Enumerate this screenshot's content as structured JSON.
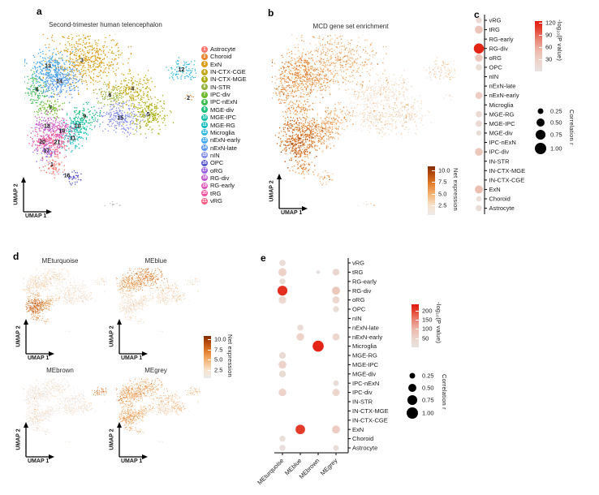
{
  "figure": {
    "panel_a_label": "a",
    "panel_b_label": "b",
    "panel_c_label": "c",
    "panel_d_label": "d",
    "panel_e_label": "e",
    "panel_a_title": "Second-trimester human telencephalon",
    "panel_b_title": "MCD gene set enrichment",
    "axis_x": "UMAP 1",
    "axis_y": "UMAP 2",
    "net_expression_label": "Net expression",
    "pvalue_label": "-log₁₀(P value)",
    "correlation_label": "Correlation r"
  },
  "chart_data": [
    {
      "id": "umap_clusters",
      "type": "scatter",
      "panel": "a",
      "title": "Second-trimester human telencephalon",
      "xlabel": "UMAP 1",
      "ylabel": "UMAP 2",
      "clusters": [
        {
          "num": 1,
          "name": "Astrocyte",
          "color": "#F8766D",
          "cx": 0.158,
          "cy": 0.715,
          "sx": 0.03,
          "sy": 0.03,
          "n": 70
        },
        {
          "num": 2,
          "name": "Choroid",
          "color": "#E8842E",
          "cx": 0.94,
          "cy": 0.35,
          "sx": 0.012,
          "sy": 0.01,
          "n": 6
        },
        {
          "num": 3,
          "name": "ExN",
          "color": "#D99C17",
          "cx": 0.36,
          "cy": 0.15,
          "sx": 0.105,
          "sy": 0.075,
          "n": 520,
          "lx": 0.33,
          "ly": 0.145
        },
        {
          "num": 4,
          "name": "IN-CTX-CGE",
          "color": "#C3A919",
          "cx": 0.62,
          "cy": 0.3,
          "sx": 0.055,
          "sy": 0.042,
          "n": 190
        },
        {
          "num": 5,
          "name": "IN-CTX-MGE",
          "color": "#ABAF13",
          "cx": 0.71,
          "cy": 0.44,
          "sx": 0.06,
          "sy": 0.045,
          "n": 220
        },
        {
          "num": 6,
          "name": "IN-STR",
          "color": "#93B43C",
          "cx": 0.49,
          "cy": 0.335,
          "sx": 0.038,
          "sy": 0.03,
          "n": 80
        },
        {
          "num": 7,
          "name": "IPC-div",
          "color": "#6FBA2C",
          "cx": 0.15,
          "cy": 0.405,
          "sx": 0.04,
          "sy": 0.026,
          "n": 80
        },
        {
          "num": 8,
          "name": "IPC-nExN",
          "color": "#3FBD53",
          "cx": 0.072,
          "cy": 0.305,
          "sx": 0.035,
          "sy": 0.045,
          "n": 110
        },
        {
          "num": 9,
          "name": "MGE-div",
          "color": "#1FBF7E",
          "cx": 0.345,
          "cy": 0.45,
          "sx": 0.042,
          "sy": 0.032,
          "n": 100
        },
        {
          "num": 10,
          "name": "MGE-IPC",
          "color": "#0ABEA5",
          "cx": 0.305,
          "cy": 0.505,
          "sx": 0.038,
          "sy": 0.03,
          "n": 90
        },
        {
          "num": 11,
          "name": "MGE-RG",
          "color": "#16BCC3",
          "cx": 0.278,
          "cy": 0.57,
          "sx": 0.032,
          "sy": 0.038,
          "n": 80
        },
        {
          "num": 12,
          "name": "Microglia",
          "color": "#33B8DD",
          "cx": 0.915,
          "cy": 0.205,
          "sx": 0.042,
          "sy": 0.032,
          "n": 90,
          "lx": 0.9,
          "ly": 0.195
        },
        {
          "num": 13,
          "name": "nExN-early",
          "color": "#3FA8EE",
          "cx": 0.15,
          "cy": 0.205,
          "sx": 0.062,
          "sy": 0.055,
          "n": 260,
          "lx": 0.135,
          "ly": 0.175
        },
        {
          "num": 14,
          "name": "nExN-late",
          "color": "#5A97F2",
          "cx": 0.2,
          "cy": 0.26,
          "sx": 0.055,
          "sy": 0.048,
          "n": 220
        },
        {
          "num": 15,
          "name": "nIN",
          "color": "#8690EF",
          "cx": 0.55,
          "cy": 0.46,
          "sx": 0.062,
          "sy": 0.045,
          "n": 230
        },
        {
          "num": 16,
          "name": "OPC",
          "color": "#5A58CE",
          "cx": 0.285,
          "cy": 0.79,
          "sx": 0.026,
          "sy": 0.018,
          "n": 40,
          "lx": 0.245,
          "ly": 0.775
        },
        {
          "num": 17,
          "name": "oRG",
          "color": "#9B64DD",
          "cx": 0.127,
          "cy": 0.64,
          "sx": 0.032,
          "sy": 0.028,
          "n": 70
        },
        {
          "num": 18,
          "name": "RG-div",
          "color": "#C257CE",
          "cx": 0.13,
          "cy": 0.505,
          "sx": 0.042,
          "sy": 0.038,
          "n": 120
        },
        {
          "num": 19,
          "name": "RG-early",
          "color": "#DE58BC",
          "cx": 0.215,
          "cy": 0.53,
          "sx": 0.04,
          "sy": 0.036,
          "n": 110
        },
        {
          "num": 20,
          "name": "tRG",
          "color": "#EE549E",
          "cx": 0.103,
          "cy": 0.59,
          "sx": 0.035,
          "sy": 0.032,
          "n": 90
        },
        {
          "num": 21,
          "name": "vRG",
          "color": "#F65C86",
          "cx": 0.188,
          "cy": 0.593,
          "sx": 0.035,
          "sy": 0.032,
          "n": 90
        },
        {
          "num": 0,
          "name": "",
          "color": "#C4C0BD",
          "cx": 0.52,
          "cy": 0.925,
          "sx": 0.03,
          "sy": 0.012,
          "n": 10
        }
      ]
    },
    {
      "id": "umap_mcd",
      "type": "scatter",
      "panel": "b",
      "title": "MCD gene set enrichment",
      "xlabel": "UMAP 1",
      "ylabel": "UMAP 2",
      "colorbar": {
        "label": "Net expression",
        "ticks": [
          2.5,
          5.0,
          7.5,
          10.0
        ],
        "min": 0.5,
        "max": 10.8
      },
      "intensity_by_cluster": {
        "0": 1.5,
        "1": 5.5,
        "2": 2.5,
        "3": 4.0,
        "4": 1.8,
        "5": 1.8,
        "6": 2.2,
        "7": 5.0,
        "8": 5.5,
        "9": 4.5,
        "10": 4.5,
        "11": 5.0,
        "12": 2.5,
        "13": 5.5,
        "14": 5.0,
        "15": 1.8,
        "16": 4.0,
        "17": 7.0,
        "18": 7.0,
        "19": 6.5,
        "20": 7.5,
        "21": 7.0
      }
    },
    {
      "id": "dotplot_mcd",
      "type": "dot",
      "panel": "c",
      "rows": [
        "vRG",
        "tRG",
        "RG-early",
        "RG-div",
        "oRG",
        "OPC",
        "nIN",
        "nExN-late",
        "nExN-early",
        "Microglia",
        "MGE-RG",
        "MGE-IPC",
        "MGE-div",
        "IPC-nExN",
        "IPC-div",
        "IN-STR",
        "IN-CTX-MGE",
        "IN-CTX-CGE",
        "ExN",
        "Choroid",
        "Astrocyte"
      ],
      "color_legend": {
        "label": "-log₁₀(P value)",
        "ticks": [
          30,
          60,
          90,
          120
        ],
        "min": 0,
        "max": 125
      },
      "size_legend": {
        "label": "Correlation r",
        "ticks": [
          0.25,
          0.5,
          0.75,
          1.0
        ]
      },
      "dots": [
        {
          "row": "vRG",
          "correlation": 0.28,
          "neglogp": 15
        },
        {
          "row": "tRG",
          "correlation": 0.5,
          "neglogp": 40
        },
        {
          "row": "RG-div",
          "correlation": 0.8,
          "neglogp": 120
        },
        {
          "row": "oRG",
          "correlation": 0.45,
          "neglogp": 38
        },
        {
          "row": "OPC",
          "correlation": 0.3,
          "neglogp": 12
        },
        {
          "row": "nExN-early",
          "correlation": 0.38,
          "neglogp": 32
        },
        {
          "row": "MGE-RG",
          "correlation": 0.3,
          "neglogp": 15
        },
        {
          "row": "MGE-IPC",
          "correlation": 0.32,
          "neglogp": 16
        },
        {
          "row": "MGE-div",
          "correlation": 0.22,
          "neglogp": 12
        },
        {
          "row": "IPC-div",
          "correlation": 0.45,
          "neglogp": 38
        },
        {
          "row": "ExN",
          "correlation": 0.5,
          "neglogp": 48
        },
        {
          "row": "Choroid",
          "correlation": 0.22,
          "neglogp": 10
        },
        {
          "row": "Astrocyte",
          "correlation": 0.3,
          "neglogp": 12
        }
      ]
    },
    {
      "id": "umap_modules",
      "type": "scatter-multi",
      "panel": "d",
      "xlabel": "UMAP 1",
      "ylabel": "UMAP 2",
      "colorbar": {
        "label": "Net expression",
        "ticks": [
          2.5,
          5.0,
          7.5,
          10.0
        ],
        "min": 0.5,
        "max": 10.8
      },
      "modules": [
        {
          "title": "MEturquoise",
          "intensity_by_cluster": {
            "0": 1.2,
            "1": 6.0,
            "2": 1.5,
            "3": 1.8,
            "4": 1.2,
            "5": 1.2,
            "6": 1.5,
            "7": 4.0,
            "8": 2.0,
            "9": 3.5,
            "10": 4.0,
            "11": 5.0,
            "12": 1.2,
            "13": 1.8,
            "14": 1.8,
            "15": 1.2,
            "16": 3.0,
            "17": 7.0,
            "18": 7.5,
            "19": 6.5,
            "20": 7.0,
            "21": 7.0
          }
        },
        {
          "title": "MEblue",
          "intensity_by_cluster": {
            "0": 1.2,
            "1": 1.5,
            "2": 1.5,
            "3": 6.5,
            "4": 2.0,
            "5": 1.5,
            "6": 2.0,
            "7": 2.5,
            "8": 3.0,
            "9": 1.8,
            "10": 1.8,
            "11": 1.5,
            "12": 1.5,
            "13": 5.0,
            "14": 4.5,
            "15": 1.8,
            "16": 1.5,
            "17": 1.5,
            "18": 1.5,
            "19": 1.5,
            "20": 1.5,
            "21": 1.5
          }
        },
        {
          "title": "MEbrown",
          "intensity_by_cluster": {
            "0": 0.9,
            "1": 0.9,
            "2": 0.9,
            "3": 0.9,
            "4": 0.9,
            "5": 0.9,
            "6": 0.9,
            "7": 0.9,
            "8": 0.9,
            "9": 0.9,
            "10": 0.9,
            "11": 0.9,
            "12": 6.5,
            "13": 0.9,
            "14": 0.9,
            "15": 0.9,
            "16": 0.9,
            "17": 0.9,
            "18": 0.9,
            "19": 0.9,
            "20": 0.9,
            "21": 0.9
          }
        },
        {
          "title": "MEgrey",
          "intensity_by_cluster": {
            "0": 2.0,
            "1": 4.5,
            "2": 2.5,
            "3": 4.5,
            "4": 3.2,
            "5": 3.2,
            "6": 3.0,
            "7": 4.5,
            "8": 5.0,
            "9": 3.8,
            "10": 3.8,
            "11": 4.0,
            "12": 3.8,
            "13": 5.0,
            "14": 4.5,
            "15": 2.5,
            "16": 4.0,
            "17": 4.5,
            "18": 4.5,
            "19": 4.0,
            "20": 5.0,
            "21": 4.5
          }
        }
      ]
    },
    {
      "id": "dotplot_modules",
      "type": "dot-grid",
      "panel": "e",
      "columns": [
        "MEturquoise",
        "MEblue",
        "MEbrown",
        "MEgrey"
      ],
      "rows": [
        "vRG",
        "tRG",
        "RG-early",
        "RG-div",
        "oRG",
        "OPC",
        "nIN",
        "nExN-late",
        "nExN-early",
        "Microglia",
        "MGE-RG",
        "MGE-IPC",
        "MGE-div",
        "IPC-nExN",
        "IPC-div",
        "IN-STR",
        "IN-CTX-MGE",
        "IN-CTX-CGE",
        "ExN",
        "Choroid",
        "Astrocyte"
      ],
      "color_legend": {
        "label": "-log₁₀(P value)",
        "ticks": [
          50,
          100,
          150,
          200
        ],
        "min": 0,
        "max": 235
      },
      "size_legend": {
        "label": "Correlation r",
        "ticks": [
          0.25,
          0.5,
          0.75,
          1.0
        ]
      },
      "dots": [
        {
          "col": "MEturquoise",
          "row": "vRG",
          "correlation": 0.3,
          "neglogp": 22
        },
        {
          "col": "MEturquoise",
          "row": "tRG",
          "correlation": 0.5,
          "neglogp": 55
        },
        {
          "col": "MEturquoise",
          "row": "RG-early",
          "correlation": 0.28,
          "neglogp": 18
        },
        {
          "col": "MEturquoise",
          "row": "RG-div",
          "correlation": 0.75,
          "neglogp": 215
        },
        {
          "col": "MEturquoise",
          "row": "oRG",
          "correlation": 0.45,
          "neglogp": 35
        },
        {
          "col": "MEturquoise",
          "row": "MGE-RG",
          "correlation": 0.35,
          "neglogp": 28
        },
        {
          "col": "MEturquoise",
          "row": "MGE-IPC",
          "correlation": 0.48,
          "neglogp": 50
        },
        {
          "col": "MEturquoise",
          "row": "MGE-div",
          "correlation": 0.35,
          "neglogp": 25
        },
        {
          "col": "MEturquoise",
          "row": "IPC-div",
          "correlation": 0.45,
          "neglogp": 48
        },
        {
          "col": "MEturquoise",
          "row": "Choroid",
          "correlation": 0.28,
          "neglogp": 14
        },
        {
          "col": "MEturquoise",
          "row": "Astrocyte",
          "correlation": 0.28,
          "neglogp": 14
        },
        {
          "col": "MEblue",
          "row": "nExN-late",
          "correlation": 0.3,
          "neglogp": 20
        },
        {
          "col": "MEblue",
          "row": "nExN-early",
          "correlation": 0.45,
          "neglogp": 48
        },
        {
          "col": "MEblue",
          "row": "ExN",
          "correlation": 0.7,
          "neglogp": 205
        },
        {
          "col": "MEbrown",
          "row": "tRG",
          "correlation": 0.1,
          "neglogp": 12
        },
        {
          "col": "MEbrown",
          "row": "Microglia",
          "correlation": 0.95,
          "neglogp": 225
        },
        {
          "col": "MEgrey",
          "row": "tRG",
          "correlation": 0.36,
          "neglogp": 38
        },
        {
          "col": "MEgrey",
          "row": "RG-div",
          "correlation": 0.5,
          "neglogp": 70
        },
        {
          "col": "MEgrey",
          "row": "oRG",
          "correlation": 0.4,
          "neglogp": 35
        },
        {
          "col": "MEgrey",
          "row": "OPC",
          "correlation": 0.28,
          "neglogp": 18
        },
        {
          "col": "MEgrey",
          "row": "nExN-early",
          "correlation": 0.38,
          "neglogp": 42
        },
        {
          "col": "MEgrey",
          "row": "IPC-nExN",
          "correlation": 0.25,
          "neglogp": 18
        },
        {
          "col": "MEgrey",
          "row": "IPC-div",
          "correlation": 0.4,
          "neglogp": 42
        },
        {
          "col": "MEgrey",
          "row": "ExN",
          "correlation": 0.5,
          "neglogp": 60
        },
        {
          "col": "MEgrey",
          "row": "Astrocyte",
          "correlation": 0.25,
          "neglogp": 14
        }
      ]
    }
  ]
}
